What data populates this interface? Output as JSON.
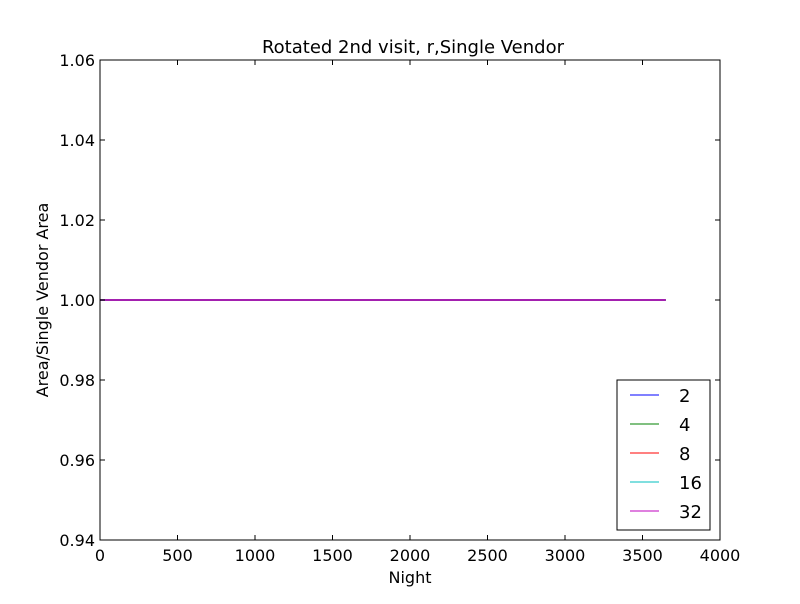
{
  "chart_data": {
    "type": "line",
    "title": "Rotated 2nd visit, r,Single Vendor",
    "xlabel": "Night",
    "ylabel": "Area/Single Vendor Area",
    "xlim": [
      0,
      4000
    ],
    "ylim": [
      0.94,
      1.06
    ],
    "x_ticks": [
      0,
      500,
      1000,
      1500,
      2000,
      2500,
      3000,
      3500,
      4000
    ],
    "x_tick_labels": [
      "0",
      "500",
      "1000",
      "1500",
      "2000",
      "2500",
      "3000",
      "3500",
      "4000"
    ],
    "y_ticks": [
      0.94,
      0.96,
      0.98,
      1.0,
      1.02,
      1.04,
      1.06
    ],
    "y_tick_labels": [
      "0.94",
      "0.96",
      "0.98",
      "1.00",
      "1.02",
      "1.04",
      "1.06"
    ],
    "grid": false,
    "legend_position": "lower-right",
    "series": [
      {
        "name": "2",
        "color": "#0000ff",
        "x": [
          0,
          3650
        ],
        "y": [
          1.0,
          1.0
        ]
      },
      {
        "name": "4",
        "color": "#008000",
        "x": [
          0,
          3650
        ],
        "y": [
          1.0,
          1.0
        ]
      },
      {
        "name": "8",
        "color": "#ff0000",
        "x": [
          0,
          3650
        ],
        "y": [
          1.0,
          1.0
        ]
      },
      {
        "name": "16",
        "color": "#00bfbf",
        "x": [
          0,
          3650
        ],
        "y": [
          1.0,
          1.0
        ]
      },
      {
        "name": "32",
        "color": "#bf00bf",
        "x": [
          0,
          3650
        ],
        "y": [
          1.0,
          1.0
        ]
      }
    ]
  }
}
